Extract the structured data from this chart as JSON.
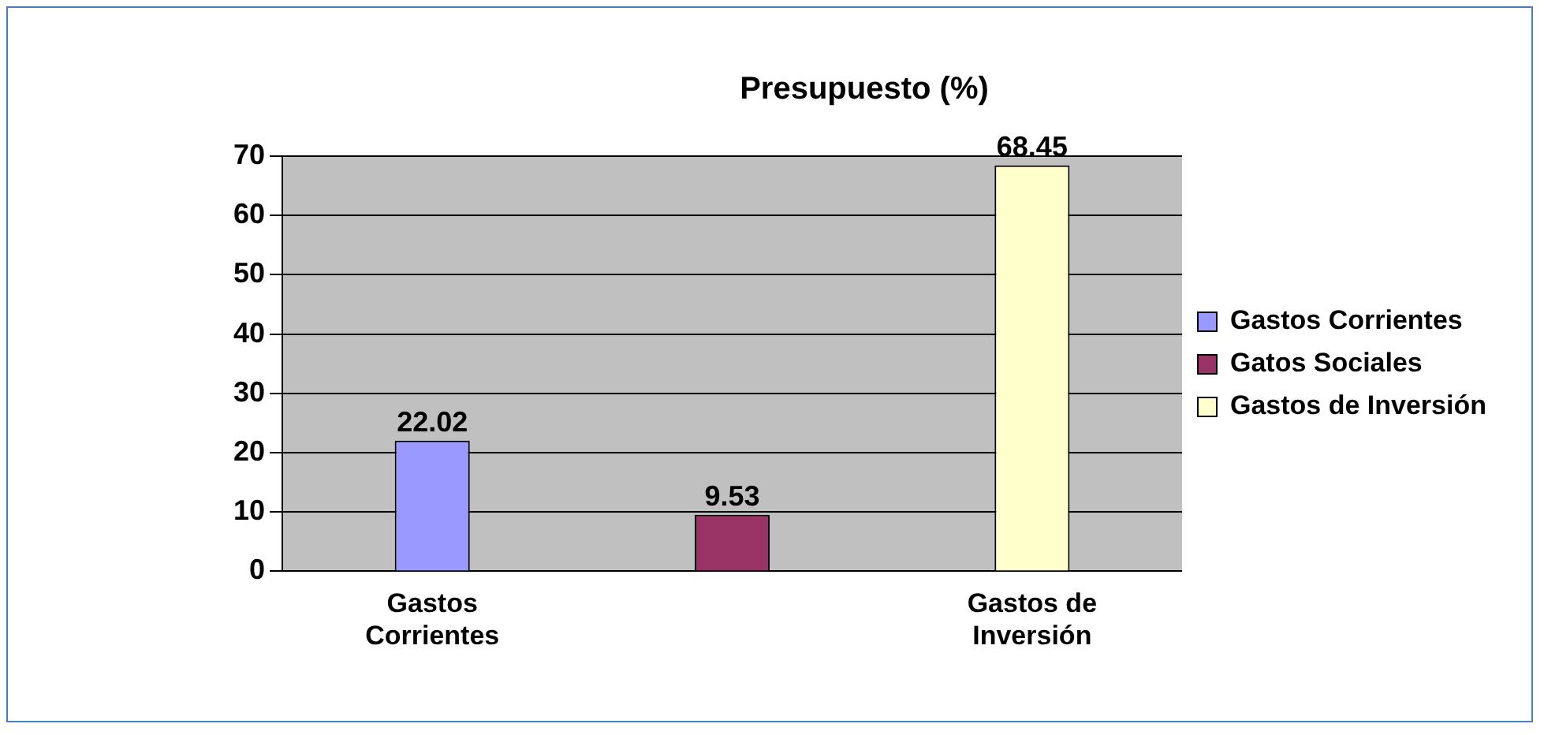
{
  "chart_data": {
    "type": "bar",
    "title": "Presupuesto (%)",
    "categories": [
      "Gastos Corrientes",
      null,
      "Gastos de Inversión"
    ],
    "series": [
      {
        "name": "Gastos Corrientes",
        "color": "#9999ff",
        "values": [
          22.02,
          null,
          null
        ]
      },
      {
        "name": "Gatos Sociales",
        "color": "#993366",
        "values": [
          null,
          9.53,
          null
        ]
      },
      {
        "name": "Gastos de Inversión",
        "color": "#ffffcc",
        "values": [
          null,
          null,
          68.45
        ]
      }
    ],
    "ylim": [
      0,
      70
    ],
    "yticks": [
      0,
      10,
      20,
      30,
      40,
      50,
      60,
      70
    ],
    "grid": "y",
    "legend": "right",
    "data_labels": true
  }
}
